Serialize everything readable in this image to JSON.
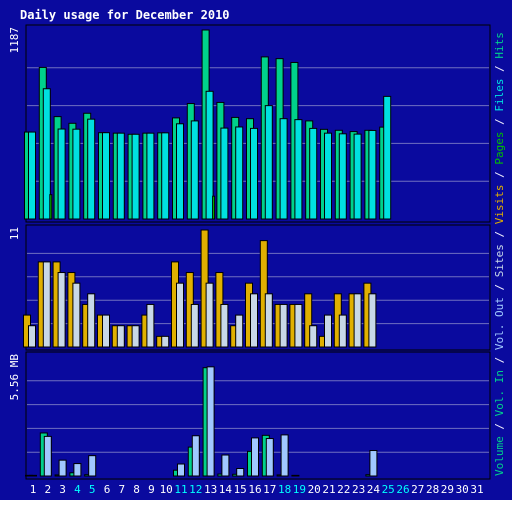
{
  "chart_data": {
    "type": "bar",
    "title": "Daily usage for December 2010",
    "days": [
      "1",
      "2",
      "3",
      "4",
      "5",
      "6",
      "7",
      "8",
      "9",
      "10",
      "11",
      "12",
      "13",
      "14",
      "15",
      "16",
      "17",
      "18",
      "19",
      "20",
      "21",
      "22",
      "23",
      "24",
      "25",
      "26",
      "27",
      "28",
      "29",
      "30",
      "31"
    ],
    "weekend_days": [
      "4",
      "5",
      "11",
      "12",
      "18",
      "19",
      "25",
      "26"
    ],
    "panels": {
      "hits_files_pages": {
        "max_label": "1187",
        "max": 1187,
        "series": [
          {
            "name": "Hits",
            "color": "#00d18b",
            "values": [
              546,
              952,
              643,
              601,
              664,
              542,
              539,
              532,
              539,
              541,
              635,
              725,
              1187,
              732,
              638,
              630,
              1018,
              1007,
              983,
              616,
              563,
              557,
              549,
              557,
              577,
              0,
              0,
              0,
              0,
              0,
              0
            ]
          },
          {
            "name": "Files",
            "color": "#00e0e0",
            "values": [
              546,
              818,
              565,
              564,
              627,
              542,
              539,
              532,
              539,
              541,
              598,
              616,
              802,
              571,
              578,
              569,
              712,
              630,
              624,
              569,
              539,
              535,
              533,
              556,
              770,
              0,
              0,
              0,
              0,
              0,
              0
            ]
          },
          {
            "name": "Pages",
            "color": "#00c000",
            "values": [
              0,
              153,
              0,
              0,
              0,
              0,
              0,
              0,
              0,
              0,
              0,
              0,
              143,
              0,
              0,
              0,
              0,
              0,
              0,
              0,
              0,
              0,
              0,
              0,
              0,
              0,
              0,
              0,
              0,
              0,
              0
            ]
          }
        ]
      },
      "visits_sites": {
        "max_label": "11",
        "max": 11,
        "series": [
          {
            "name": "Visits",
            "color": "#e0b000",
            "values": [
              3,
              8,
              8,
              7,
              4,
              3,
              2,
              2,
              3,
              1,
              8,
              7,
              11,
              7,
              2,
              6,
              10,
              4,
              4,
              5,
              1,
              5,
              5,
              6,
              0,
              0,
              0,
              0,
              0,
              0,
              0
            ]
          },
          {
            "name": "Sites",
            "color": "#c8d8e8",
            "values": [
              2,
              8,
              7,
              6,
              5,
              3,
              2,
              2,
              4,
              1,
              6,
              4,
              6,
              4,
              3,
              5,
              5,
              4,
              4,
              2,
              3,
              3,
              5,
              5,
              0,
              0,
              0,
              0,
              0,
              0,
              0
            ]
          }
        ]
      },
      "volume": {
        "max_label": "5.56 MB",
        "max": 5.56,
        "series": [
          {
            "name": "Vol. In",
            "color": "#00d18b",
            "values": [
              0.03,
              2.01,
              0.05,
              0.15,
              0.06,
              0,
              0,
              0,
              0,
              0,
              0.27,
              1.35,
              5.06,
              0.09,
              0.08,
              1.15,
              1.9,
              0.05,
              0.03,
              0,
              0,
              0,
              0,
              0.06,
              0,
              0,
              0,
              0,
              0,
              0,
              0
            ]
          },
          {
            "name": "Vol. Out",
            "color": "#a0c8ff",
            "values": [
              0.03,
              1.85,
              0.74,
              0.58,
              0.95,
              0,
              0,
              0,
              0,
              0,
              0.56,
              1.88,
              5.1,
              0.98,
              0.35,
              1.78,
              1.75,
              1.92,
              0,
              0,
              0,
              0,
              0,
              1.19,
              0,
              0,
              0,
              0,
              0,
              0,
              0
            ]
          }
        ]
      }
    },
    "right_label_parts": [
      {
        "text": "Volume",
        "color": "#00d18b"
      },
      {
        "text": " / ",
        "color": "#f0f0ff"
      },
      {
        "text": "Vol. In",
        "color": "#00d18b"
      },
      {
        "text": " / ",
        "color": "#f0f0ff"
      },
      {
        "text": "Vol. Out",
        "color": "#a0c8ff"
      },
      {
        "text": " / ",
        "color": "#f0f0ff"
      },
      {
        "text": "Sites",
        "color": "#c8d8e8"
      },
      {
        "text": " / ",
        "color": "#f0f0ff"
      },
      {
        "text": "Visits",
        "color": "#e0b000"
      },
      {
        "text": " / ",
        "color": "#f0f0ff"
      },
      {
        "text": "Pages",
        "color": "#00c000"
      },
      {
        "text": " / ",
        "color": "#f0f0ff"
      },
      {
        "text": "Files",
        "color": "#00e0e0"
      },
      {
        "text": " / ",
        "color": "#f0f0ff"
      },
      {
        "text": "Hits",
        "color": "#00d18b"
      }
    ],
    "colors": {
      "background": "#0a0a9e",
      "frame": "#000000",
      "grid": "#7070c0",
      "title_text": "#ffffff",
      "axis_text": "#ffffff",
      "weekend_text": "#00ffff"
    }
  }
}
